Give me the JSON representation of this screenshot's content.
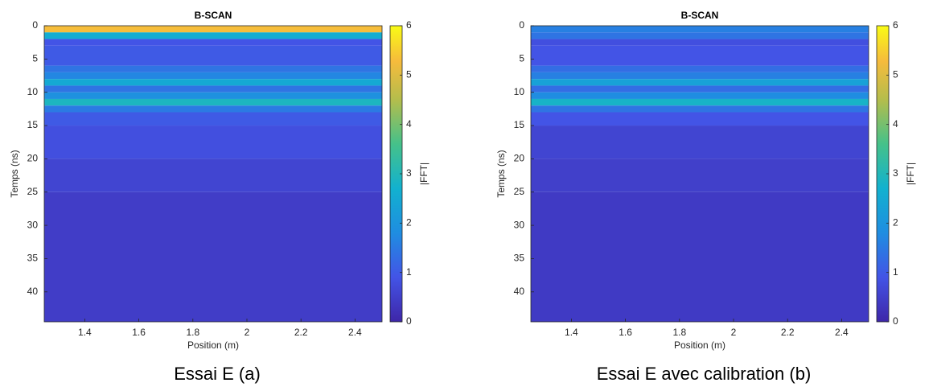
{
  "chart_data": [
    {
      "type": "heatmap",
      "title": "B-SCAN",
      "xlabel": "Position (m)",
      "ylabel": "Temps (ns)",
      "colorbar_label": "|FFT|",
      "caption": "Essai E (a)",
      "colormap": "parula",
      "xlim": [
        1.25,
        2.5
      ],
      "xticks": [
        1.4,
        1.6,
        1.8,
        2,
        2.2,
        2.4
      ],
      "ylim": [
        0,
        44.5
      ],
      "yticks": [
        0,
        5,
        10,
        15,
        20,
        25,
        30,
        35,
        40
      ],
      "clim": [
        0,
        6
      ],
      "cticks": [
        0,
        1,
        2,
        3,
        4,
        5,
        6
      ],
      "ybins": [
        0,
        1,
        2,
        3,
        6,
        7,
        8,
        9,
        10,
        11,
        12,
        13,
        15,
        20,
        25,
        44.5
      ],
      "values": [
        5.3,
        2.6,
        0.9,
        1.0,
        1.4,
        1.7,
        2.5,
        1.4,
        1.9,
        2.9,
        1.5,
        1.0,
        0.8,
        0.6,
        0.45
      ]
    },
    {
      "type": "heatmap",
      "title": "B-SCAN",
      "xlabel": "Position (m)",
      "ylabel": "Temps (ns)",
      "colorbar_label": "|FFT|",
      "caption": "Essai E avec calibration (b)",
      "colormap": "parula",
      "xlim": [
        1.25,
        2.5
      ],
      "xticks": [
        1.4,
        1.6,
        1.8,
        2,
        2.2,
        2.4
      ],
      "ylim": [
        0,
        44.5
      ],
      "yticks": [
        0,
        5,
        10,
        15,
        20,
        25,
        30,
        35,
        40
      ],
      "clim": [
        0,
        6
      ],
      "cticks": [
        0,
        1,
        2,
        3,
        4,
        5,
        6
      ],
      "ybins": [
        0,
        1,
        2,
        3,
        6,
        7,
        8,
        9,
        10,
        11,
        12,
        13,
        15,
        20,
        25,
        44.5
      ],
      "values": [
        1.6,
        1.4,
        0.8,
        0.9,
        1.3,
        1.6,
        2.3,
        1.3,
        1.8,
        2.8,
        1.4,
        0.9,
        0.6,
        0.5,
        0.4
      ]
    }
  ]
}
